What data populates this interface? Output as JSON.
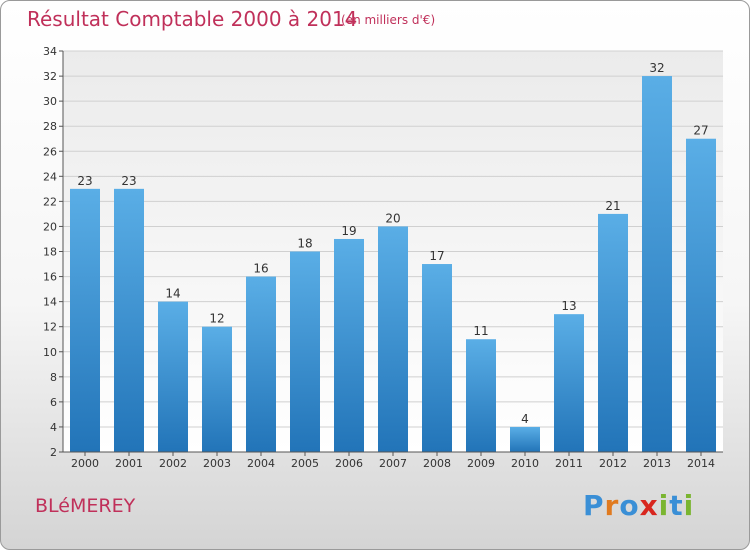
{
  "header": {
    "title": "Résultat Comptable 2000 à 2014",
    "subtitle": "(en milliers d'€)"
  },
  "footer": {
    "town": "BLéMEREY",
    "brand": "Proxiti"
  },
  "colors": {
    "title": "#c0305a",
    "bar_top": "#5aaee6",
    "bar_bottom": "#2274b8",
    "logo_letters": [
      "#3a8fd6",
      "#e07a1f",
      "#3a8fd6",
      "#d8261e",
      "#7ab530",
      "#3a8fd6",
      "#7ab530"
    ]
  },
  "chart_data": {
    "type": "bar",
    "title": "Résultat Comptable 2000 à 2014",
    "subtitle": "(en milliers d'€)",
    "categories": [
      "2000",
      "2001",
      "2002",
      "2003",
      "2004",
      "2005",
      "2006",
      "2007",
      "2008",
      "2009",
      "2010",
      "2011",
      "2012",
      "2013",
      "2014"
    ],
    "values": [
      23,
      23,
      14,
      12,
      16,
      18,
      19,
      20,
      17,
      11,
      4,
      13,
      21,
      32,
      27
    ],
    "ylim": [
      2,
      34
    ],
    "yticks": [
      2,
      4,
      6,
      8,
      10,
      12,
      14,
      16,
      18,
      20,
      22,
      24,
      26,
      28,
      30,
      32,
      34
    ],
    "grid": true,
    "data_labels": true
  }
}
